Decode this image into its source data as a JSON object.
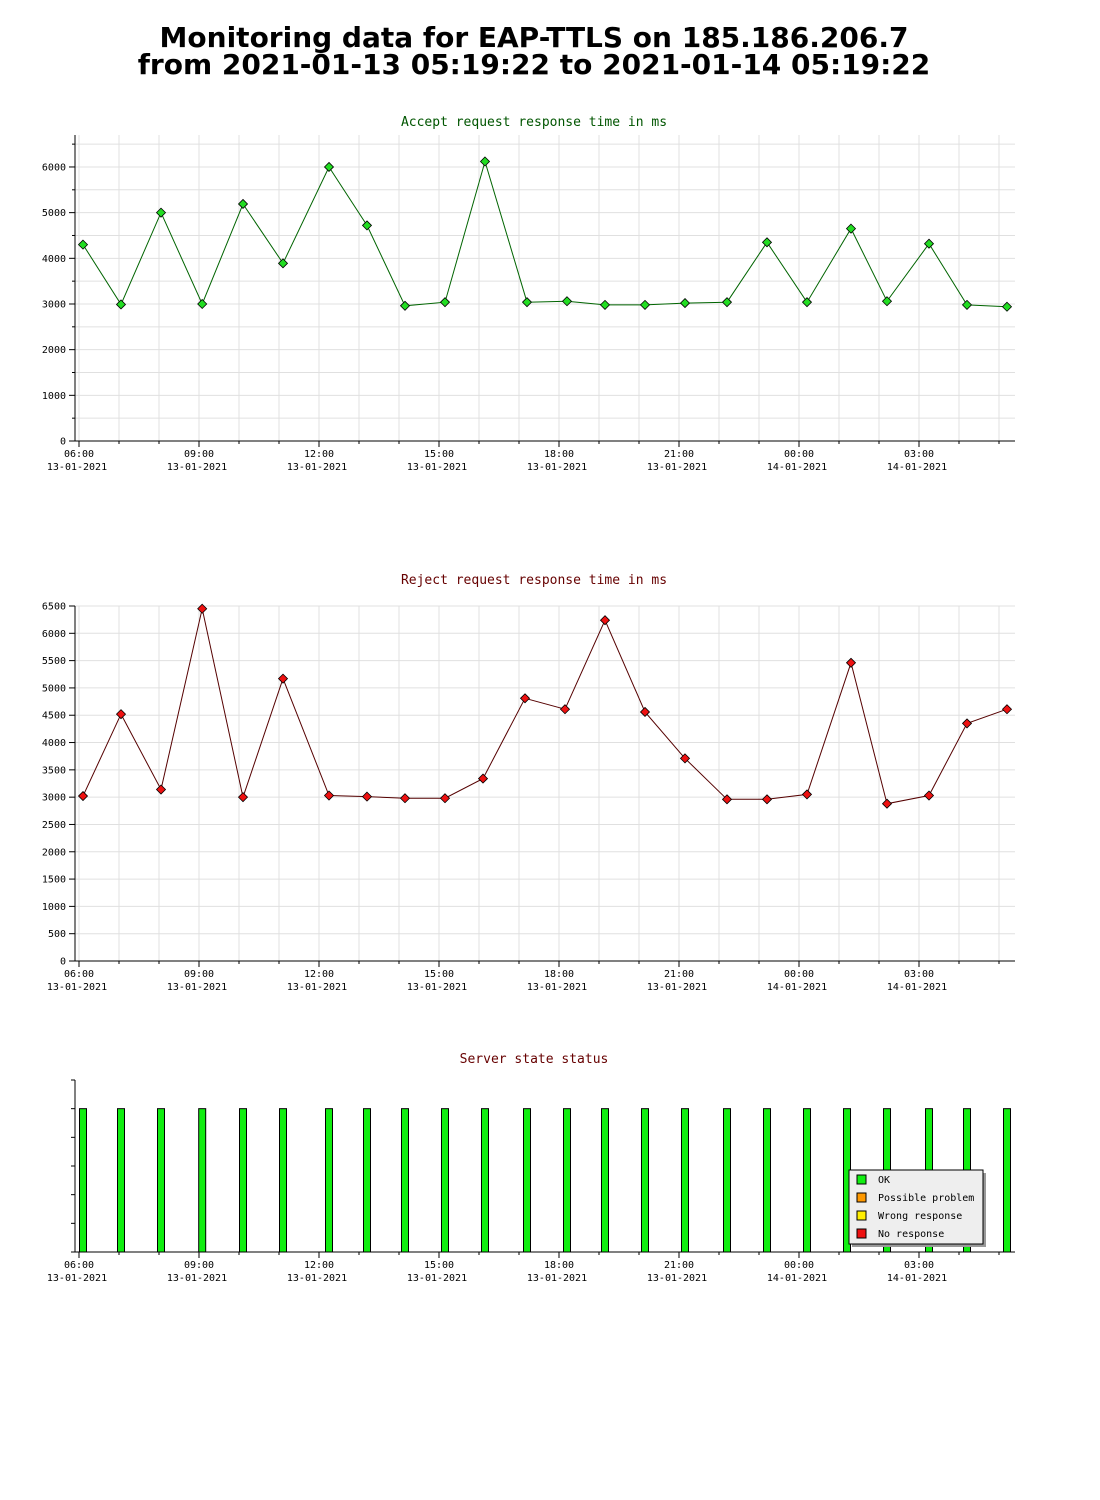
{
  "page": {
    "title_line1": "Monitoring data for EAP-TTLS on 185.186.206.7",
    "title_line2": "from 2021-01-13 05:19:22 to 2021-01-14 05:19:22"
  },
  "colors": {
    "accept_line": "#006400",
    "accept_marker": "#22dd22",
    "reject_line": "#550000",
    "reject_marker": "#ee1111",
    "status_bar": "#11ee11",
    "grid": "#e0e0e0",
    "accept_title": "#005500",
    "reject_title": "#660000",
    "status_title": "#660000"
  },
  "chart_data": [
    {
      "type": "line",
      "title": "Accept request response time in ms",
      "x_ticks": [
        {
          "x": 6,
          "time": "06:00",
          "date": "13-01-2021"
        },
        {
          "x": 9,
          "time": "09:00",
          "date": "13-01-2021"
        },
        {
          "x": 12,
          "time": "12:00",
          "date": "13-01-2021"
        },
        {
          "x": 15,
          "time": "15:00",
          "date": "13-01-2021"
        },
        {
          "x": 18,
          "time": "18:00",
          "date": "13-01-2021"
        },
        {
          "x": 21,
          "time": "21:00",
          "date": "13-01-2021"
        },
        {
          "x": 24,
          "time": "00:00",
          "date": "14-01-2021"
        },
        {
          "x": 27,
          "time": "03:00",
          "date": "14-01-2021"
        }
      ],
      "xlim": [
        5.9,
        29.4
      ],
      "ylim": [
        0,
        6700
      ],
      "y_ticks": [
        0,
        1000,
        2000,
        3000,
        4000,
        5000,
        6000
      ],
      "y_minor_step": 500,
      "grid": true,
      "x": [
        6.1,
        7.05,
        8.05,
        9.08,
        10.1,
        11.1,
        12.25,
        13.2,
        14.15,
        15.15,
        16.15,
        17.2,
        18.2,
        19.15,
        20.15,
        21.15,
        22.2,
        23.2,
        24.2,
        25.3,
        26.2,
        27.25,
        28.2,
        29.2
      ],
      "y": [
        4300,
        2990,
        5000,
        3000,
        5190,
        3890,
        6000,
        4720,
        2960,
        3040,
        6120,
        3040,
        3060,
        2980,
        2980,
        3020,
        3040,
        4350,
        3040,
        4650,
        3060,
        4320,
        2980,
        2940
      ]
    },
    {
      "type": "line",
      "title": "Reject request response time in ms",
      "x_ticks": [
        {
          "x": 6,
          "time": "06:00",
          "date": "13-01-2021"
        },
        {
          "x": 9,
          "time": "09:00",
          "date": "13-01-2021"
        },
        {
          "x": 12,
          "time": "12:00",
          "date": "13-01-2021"
        },
        {
          "x": 15,
          "time": "15:00",
          "date": "13-01-2021"
        },
        {
          "x": 18,
          "time": "18:00",
          "date": "13-01-2021"
        },
        {
          "x": 21,
          "time": "21:00",
          "date": "13-01-2021"
        },
        {
          "x": 24,
          "time": "00:00",
          "date": "14-01-2021"
        },
        {
          "x": 27,
          "time": "03:00",
          "date": "14-01-2021"
        }
      ],
      "xlim": [
        5.9,
        29.4
      ],
      "ylim": [
        0,
        6500
      ],
      "y_ticks": [
        0,
        500,
        1000,
        1500,
        2000,
        2500,
        3000,
        3500,
        4000,
        4500,
        5000,
        5500,
        6000,
        6500
      ],
      "grid": true,
      "x": [
        6.1,
        7.05,
        8.05,
        9.08,
        10.1,
        11.1,
        12.25,
        13.2,
        14.15,
        15.15,
        16.1,
        17.15,
        18.15,
        19.15,
        20.15,
        21.15,
        22.2,
        23.2,
        24.2,
        25.3,
        26.2,
        27.25,
        28.2,
        29.2
      ],
      "y": [
        3020,
        4520,
        3140,
        6450,
        3000,
        5170,
        3030,
        3010,
        2980,
        2980,
        3340,
        4810,
        4610,
        6240,
        4560,
        3710,
        2960,
        2960,
        3050,
        5460,
        2880,
        3030,
        4350,
        4610
      ]
    },
    {
      "type": "bar",
      "title": "Server state status",
      "x_ticks": [
        {
          "x": 6,
          "time": "06:00",
          "date": "13-01-2021"
        },
        {
          "x": 9,
          "time": "09:00",
          "date": "13-01-2021"
        },
        {
          "x": 12,
          "time": "12:00",
          "date": "13-01-2021"
        },
        {
          "x": 15,
          "time": "15:00",
          "date": "13-01-2021"
        },
        {
          "x": 18,
          "time": "18:00",
          "date": "13-01-2021"
        },
        {
          "x": 21,
          "time": "21:00",
          "date": "13-01-2021"
        },
        {
          "x": 24,
          "time": "00:00",
          "date": "14-01-2021"
        },
        {
          "x": 27,
          "time": "03:00",
          "date": "14-01-2021"
        }
      ],
      "xlim": [
        5.9,
        29.4
      ],
      "ylim": [
        0,
        6
      ],
      "grid": false,
      "x": [
        6.1,
        7.05,
        8.05,
        9.08,
        10.1,
        11.1,
        12.25,
        13.2,
        14.15,
        15.15,
        16.15,
        17.2,
        18.2,
        19.15,
        20.15,
        21.15,
        22.2,
        23.2,
        24.2,
        25.2,
        26.2,
        27.25,
        28.2,
        29.2
      ],
      "status": [
        "OK",
        "OK",
        "OK",
        "OK",
        "OK",
        "OK",
        "OK",
        "OK",
        "OK",
        "OK",
        "OK",
        "OK",
        "OK",
        "OK",
        "OK",
        "OK",
        "OK",
        "OK",
        "OK",
        "OK",
        "OK",
        "OK",
        "OK",
        "OK"
      ],
      "bar_value": 5,
      "legend_position": "bottom-right",
      "legend": [
        {
          "label": "OK",
          "color": "#11ee11"
        },
        {
          "label": "Possible problem",
          "color": "#ff9900"
        },
        {
          "label": "Wrong response",
          "color": "#ffee00"
        },
        {
          "label": "No response",
          "color": "#ee1111"
        }
      ]
    }
  ]
}
